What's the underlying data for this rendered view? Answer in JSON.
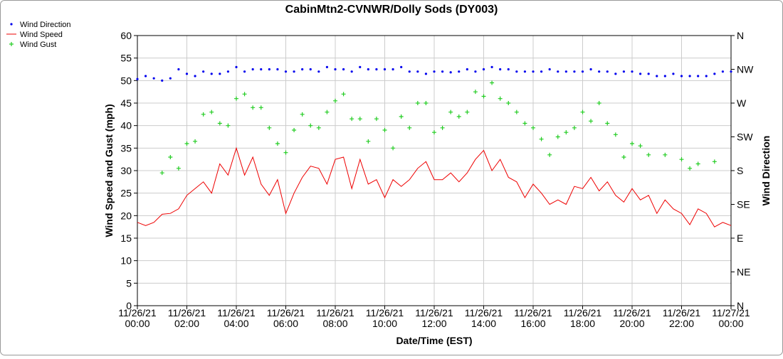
{
  "chart_data": {
    "type": "line",
    "title": "CabinMtn2-CVNWR/Dolly Sods (DY003)",
    "xlabel": "Date/Time (EST)",
    "ylabel": "Wind Speed and Gust (mph)",
    "y2label": "Wind Direction",
    "legend": "top-left",
    "grid": true,
    "x": [
      "2021-11-26T00:00",
      "2021-11-26T00:20",
      "2021-11-26T00:40",
      "2021-11-26T01:00",
      "2021-11-26T01:20",
      "2021-11-26T01:40",
      "2021-11-26T02:00",
      "2021-11-26T02:20",
      "2021-11-26T02:40",
      "2021-11-26T03:00",
      "2021-11-26T03:20",
      "2021-11-26T03:40",
      "2021-11-26T04:00",
      "2021-11-26T04:20",
      "2021-11-26T04:40",
      "2021-11-26T05:00",
      "2021-11-26T05:20",
      "2021-11-26T05:40",
      "2021-11-26T06:00",
      "2021-11-26T06:20",
      "2021-11-26T06:40",
      "2021-11-26T07:00",
      "2021-11-26T07:20",
      "2021-11-26T07:40",
      "2021-11-26T08:00",
      "2021-11-26T08:20",
      "2021-11-26T08:40",
      "2021-11-26T09:00",
      "2021-11-26T09:20",
      "2021-11-26T09:40",
      "2021-11-26T10:00",
      "2021-11-26T10:20",
      "2021-11-26T10:40",
      "2021-11-26T11:00",
      "2021-11-26T11:20",
      "2021-11-26T11:40",
      "2021-11-26T12:00",
      "2021-11-26T12:20",
      "2021-11-26T12:40",
      "2021-11-26T13:00",
      "2021-11-26T13:20",
      "2021-11-26T13:40",
      "2021-11-26T14:00",
      "2021-11-26T14:20",
      "2021-11-26T14:40",
      "2021-11-26T15:00",
      "2021-11-26T15:20",
      "2021-11-26T15:40",
      "2021-11-26T16:00",
      "2021-11-26T16:20",
      "2021-11-26T16:40",
      "2021-11-26T17:00",
      "2021-11-26T17:20",
      "2021-11-26T17:40",
      "2021-11-26T18:00",
      "2021-11-26T18:20",
      "2021-11-26T18:40",
      "2021-11-26T19:00",
      "2021-11-26T19:20",
      "2021-11-26T19:40",
      "2021-11-26T20:00",
      "2021-11-26T20:20",
      "2021-11-26T20:40",
      "2021-11-26T21:00",
      "2021-11-26T21:20",
      "2021-11-26T21:40",
      "2021-11-26T22:00",
      "2021-11-26T22:20",
      "2021-11-26T22:40",
      "2021-11-26T23:00",
      "2021-11-26T23:20",
      "2021-11-26T23:40",
      "2021-11-27T00:00"
    ],
    "series": [
      {
        "name": "Wind Direction",
        "color": "#0000ee",
        "style": "dots",
        "axis": "y2",
        "values": [
          302,
          306,
          303,
          300,
          303,
          315,
          309,
          306,
          312,
          309,
          309,
          312,
          318,
          312,
          315,
          315,
          315,
          315,
          312,
          312,
          315,
          315,
          312,
          318,
          315,
          315,
          312,
          318,
          315,
          315,
          315,
          315,
          318,
          312,
          312,
          309,
          312,
          312,
          311,
          312,
          315,
          312,
          315,
          318,
          315,
          315,
          312,
          312,
          312,
          312,
          315,
          312,
          312,
          312,
          312,
          315,
          312,
          312,
          309,
          312,
          312,
          309,
          309,
          306,
          306,
          309,
          306,
          306,
          306,
          306,
          309,
          312,
          312
        ]
      },
      {
        "name": "Wind Speed",
        "color": "#ee0000",
        "style": "line",
        "values": [
          18.5,
          17.8,
          18.5,
          20.3,
          20.5,
          21.5,
          24.5,
          26,
          27.5,
          25,
          31.5,
          29,
          35,
          29,
          33,
          27,
          24.5,
          28,
          20.5,
          25,
          28.5,
          31,
          30.5,
          27,
          32.5,
          33,
          26,
          32.5,
          27,
          28,
          24,
          28,
          26.5,
          28,
          30.5,
          32,
          28,
          28,
          29.5,
          27.5,
          29.5,
          32.5,
          34.5,
          30,
          32.5,
          28.5,
          27.5,
          24,
          27,
          25,
          22.5,
          23.5,
          22.5,
          26.5,
          26,
          28.5,
          25.5,
          27.5,
          24.5,
          23,
          26,
          23.5,
          24.5,
          20.5,
          23.5,
          21.5,
          20.5,
          18,
          21.5,
          20.5,
          17.5,
          18.5,
          17.8
        ]
      },
      {
        "name": "Wind Gust",
        "color": "#22cc22",
        "style": "plus",
        "values": [
          null,
          null,
          null,
          29.5,
          33,
          30.5,
          36,
          36.5,
          42.5,
          43,
          40.5,
          40,
          46,
          47,
          44,
          44,
          39.5,
          36,
          34,
          39,
          42.5,
          40,
          39.5,
          43,
          45.5,
          47,
          41.5,
          41.5,
          36.5,
          41.5,
          39,
          35,
          42,
          39.5,
          45,
          45,
          38.5,
          39.5,
          43,
          42,
          43,
          47.5,
          46.5,
          49.5,
          46,
          45,
          43,
          40.5,
          39.5,
          37,
          33.5,
          37.5,
          38.5,
          39.5,
          43,
          41,
          45,
          40.5,
          38,
          33,
          36,
          35.5,
          33.5,
          null,
          33.5,
          null,
          32.5,
          30.5,
          31.5,
          null,
          32,
          null,
          null
        ]
      }
    ],
    "xlim": [
      "2021-11-26T00:00",
      "2021-11-27T00:00"
    ],
    "xticks": [
      {
        "value": "2021-11-26T00:00",
        "label": "11/26/21 00:00"
      },
      {
        "value": "2021-11-26T02:00",
        "label": "11/26/21 02:00"
      },
      {
        "value": "2021-11-26T04:00",
        "label": "11/26/21 04:00"
      },
      {
        "value": "2021-11-26T06:00",
        "label": "11/26/21 06:00"
      },
      {
        "value": "2021-11-26T08:00",
        "label": "11/26/21 08:00"
      },
      {
        "value": "2021-11-26T10:00",
        "label": "11/26/21 10:00"
      },
      {
        "value": "2021-11-26T12:00",
        "label": "11/26/21 12:00"
      },
      {
        "value": "2021-11-26T14:00",
        "label": "11/26/21 14:00"
      },
      {
        "value": "2021-11-26T16:00",
        "label": "11/26/21 16:00"
      },
      {
        "value": "2021-11-26T18:00",
        "label": "11/26/21 18:00"
      },
      {
        "value": "2021-11-26T20:00",
        "label": "11/26/21 20:00"
      },
      {
        "value": "2021-11-26T22:00",
        "label": "11/26/21 22:00"
      },
      {
        "value": "2021-11-27T00:00",
        "label": "11/27/21 00:00"
      }
    ],
    "ylim": [
      0,
      60
    ],
    "yticks": [
      0,
      5,
      10,
      15,
      20,
      25,
      30,
      35,
      40,
      45,
      50,
      55,
      60
    ],
    "y2lim": [
      0,
      360
    ],
    "y2ticks": [
      {
        "value": 0,
        "label": "N"
      },
      {
        "value": 45,
        "label": "NE"
      },
      {
        "value": 90,
        "label": "E"
      },
      {
        "value": 135,
        "label": "SE"
      },
      {
        "value": 180,
        "label": "S"
      },
      {
        "value": 225,
        "label": "SW"
      },
      {
        "value": 270,
        "label": "W"
      },
      {
        "value": 315,
        "label": "NW"
      },
      {
        "value": 360,
        "label": "N"
      }
    ]
  }
}
